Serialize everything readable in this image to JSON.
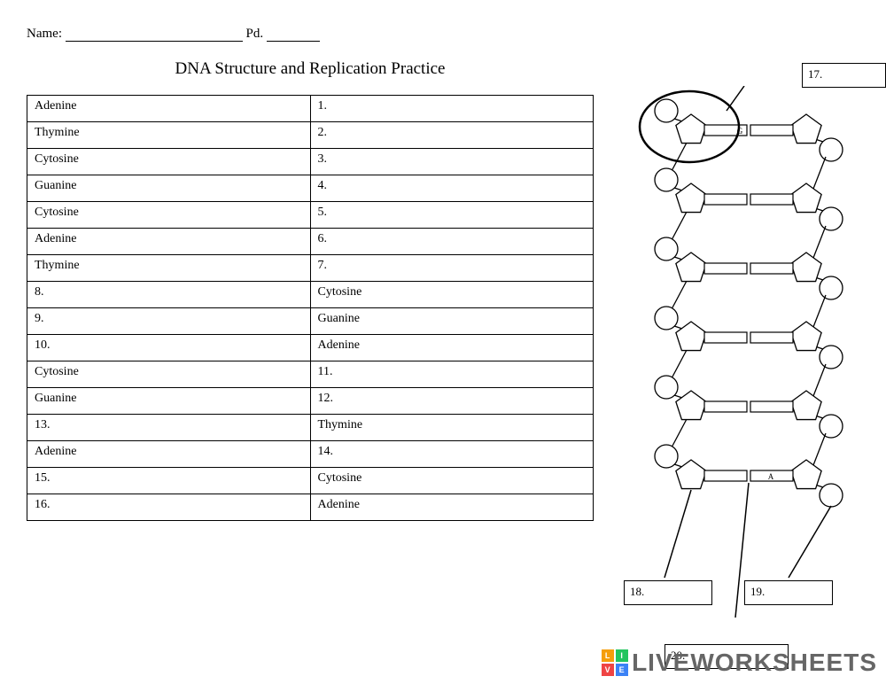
{
  "header": {
    "name_label": "Name:",
    "pd_label": "Pd."
  },
  "title": "DNA Structure and Replication Practice",
  "table": {
    "rows": [
      [
        "Adenine",
        "1."
      ],
      [
        "Thymine",
        "2."
      ],
      [
        "Cytosine",
        "3."
      ],
      [
        "Guanine",
        "4."
      ],
      [
        "Cytosine",
        "5."
      ],
      [
        "Adenine",
        "6."
      ],
      [
        "Thymine",
        "7."
      ],
      [
        "8.",
        "Cytosine"
      ],
      [
        "9.",
        "Guanine"
      ],
      [
        "10.",
        "Adenine"
      ],
      [
        "Cytosine",
        "11."
      ],
      [
        "Guanine",
        "12."
      ],
      [
        "13.",
        "Thymine"
      ],
      [
        "Adenine",
        "14."
      ],
      [
        "15.",
        "Cytosine"
      ],
      [
        "16.",
        "Adenine"
      ]
    ]
  },
  "diagram": {
    "boxes": {
      "q17": "17.",
      "q18": "18.",
      "q19": "19.",
      "q20": "20."
    },
    "base_labels": {
      "g": "G",
      "a": "A"
    },
    "colors": {
      "stroke": "#000000",
      "fill": "#ffffff",
      "box_border": "#000000"
    },
    "rungs": 6,
    "rung_height": 78
  },
  "watermark": {
    "text": "LIVEWORKSHEETS",
    "logo_letters": [
      "L",
      "I",
      "V",
      "E"
    ],
    "logo_colors": [
      "#f59e0b",
      "#22c55e",
      "#ef4444",
      "#3b82f6"
    ]
  }
}
